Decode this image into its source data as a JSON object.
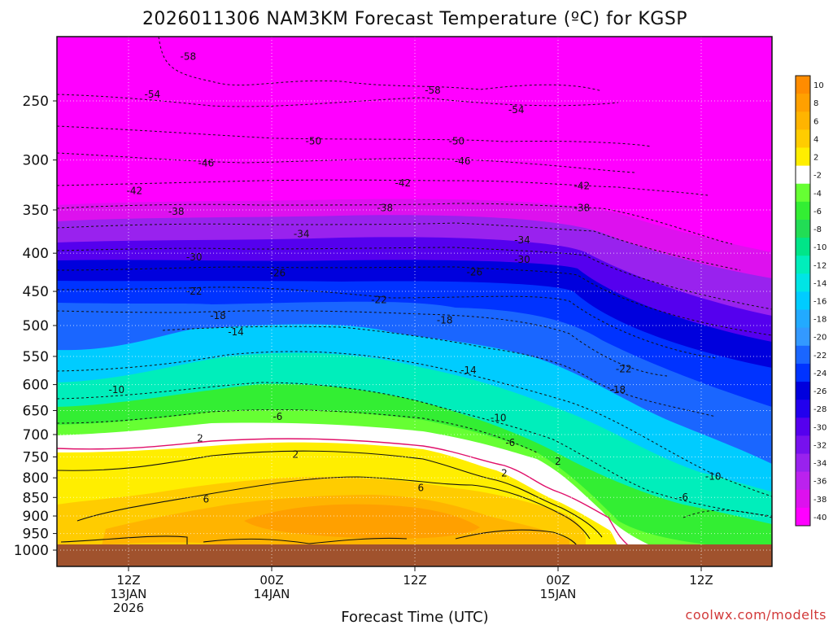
{
  "chart_data": {
    "type": "heatmap",
    "title": "2026011306 NAM3KM Forecast Temperature (ºC) for KGSP",
    "xlabel": "Forecast Time (UTC)",
    "ylabel": "",
    "credit": "coolwx.com/modelts",
    "y_scale": "log",
    "y_inverted": true,
    "ylim": [
      1000,
      200
    ],
    "y_ticks": [
      250,
      300,
      350,
      400,
      450,
      500,
      550,
      600,
      650,
      700,
      750,
      800,
      850,
      900,
      950,
      1000
    ],
    "x_ticks": [
      {
        "label": "12Z",
        "date": "13JAN",
        "year": "2026"
      },
      {
        "label": "00Z",
        "date": "14JAN",
        "year": ""
      },
      {
        "label": "12Z",
        "date": "",
        "year": ""
      },
      {
        "label": "00Z",
        "date": "15JAN",
        "year": ""
      },
      {
        "label": "12Z",
        "date": "",
        "year": ""
      }
    ],
    "grid": "dotted",
    "colorbar": {
      "ticks": [
        "10",
        "8",
        "6",
        "4",
        "2",
        "-2",
        "-4",
        "-6",
        "-8",
        "-10",
        "-12",
        "-14",
        "-16",
        "-18",
        "-20",
        "-22",
        "-24",
        "-26",
        "-28",
        "-30",
        "-32",
        "-34",
        "-36",
        "-38",
        "-40"
      ],
      "colors": [
        "#ff8c00",
        "#ffa000",
        "#ffb400",
        "#ffcc00",
        "#ffee00",
        "#ffffff",
        "#66ff33",
        "#33ee33",
        "#22dd55",
        "#00e588",
        "#00eebb",
        "#00e5e5",
        "#00ccff",
        "#22aaff",
        "#3399ff",
        "#1a66ff",
        "#0033ff",
        "#0000dd",
        "#2200ee",
        "#5500ee",
        "#7711ee",
        "#9922ee",
        "#bb22ee",
        "#dd11ee",
        "#ff00ff"
      ]
    },
    "contour_labels": [
      {
        "value": "-58",
        "time_h": 17,
        "p": 218
      },
      {
        "value": "-58",
        "time_h": 37.5,
        "p": 242
      },
      {
        "value": "-54",
        "time_h": 14,
        "p": 245
      },
      {
        "value": "-54",
        "time_h": 44.5,
        "p": 257
      },
      {
        "value": "-50",
        "time_h": 27.5,
        "p": 283
      },
      {
        "value": "-50",
        "time_h": 39.5,
        "p": 283
      },
      {
        "value": "-46",
        "time_h": 18.5,
        "p": 303
      },
      {
        "value": "-46",
        "time_h": 40,
        "p": 301
      },
      {
        "value": "-42",
        "time_h": 12.5,
        "p": 330
      },
      {
        "value": "-42",
        "time_h": 35,
        "p": 322
      },
      {
        "value": "-42",
        "time_h": 50,
        "p": 325
      },
      {
        "value": "-38",
        "time_h": 16,
        "p": 352
      },
      {
        "value": "-38",
        "time_h": 33.5,
        "p": 348
      },
      {
        "value": "-38",
        "time_h": 50,
        "p": 348
      },
      {
        "value": "-34",
        "time_h": 26.5,
        "p": 377
      },
      {
        "value": "-34",
        "time_h": 45,
        "p": 384
      },
      {
        "value": "-30",
        "time_h": 17.5,
        "p": 405
      },
      {
        "value": "-30",
        "time_h": 45,
        "p": 408
      },
      {
        "value": "-26",
        "time_h": 24.5,
        "p": 425
      },
      {
        "value": "-26",
        "time_h": 41,
        "p": 424
      },
      {
        "value": "-22",
        "time_h": 17.5,
        "p": 450
      },
      {
        "value": "-22",
        "time_h": 33,
        "p": 462
      },
      {
        "value": "-22",
        "time_h": 53.5,
        "p": 572
      },
      {
        "value": "-18",
        "time_h": 19.5,
        "p": 485
      },
      {
        "value": "-18",
        "time_h": 38.5,
        "p": 492
      },
      {
        "value": "-18",
        "time_h": 53,
        "p": 610
      },
      {
        "value": "-14",
        "time_h": 21,
        "p": 510
      },
      {
        "value": "-14",
        "time_h": 40.5,
        "p": 574
      },
      {
        "value": "-10",
        "time_h": 11,
        "p": 610
      },
      {
        "value": "-10",
        "time_h": 43,
        "p": 665
      },
      {
        "value": "-10",
        "time_h": 61,
        "p": 797
      },
      {
        "value": "-6",
        "time_h": 24.5,
        "p": 662
      },
      {
        "value": "-6",
        "time_h": 44,
        "p": 718
      },
      {
        "value": "-6",
        "time_h": 58.5,
        "p": 849
      },
      {
        "value": "2",
        "time_h": 18,
        "p": 708
      },
      {
        "value": "2",
        "time_h": 26,
        "p": 744
      },
      {
        "value": "2",
        "time_h": 43.5,
        "p": 789
      },
      {
        "value": "2",
        "time_h": 48,
        "p": 761
      },
      {
        "value": "6",
        "time_h": 18.5,
        "p": 855
      },
      {
        "value": "6",
        "time_h": 36.5,
        "p": 825
      }
    ]
  }
}
